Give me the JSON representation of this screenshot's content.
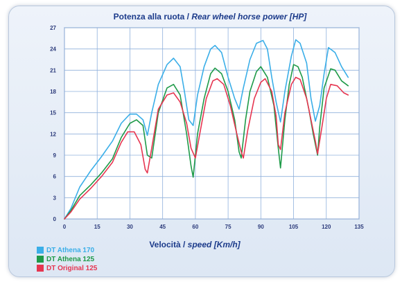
{
  "chart_data": {
    "type": "line",
    "title_main": "Potenza alla ruota / ",
    "title_italic": "Rear wheel horse power [HP]",
    "xlabel_main": "Velocità / ",
    "xlabel_italic": "speed [Km/h]",
    "xlim": [
      0,
      135
    ],
    "ylim": [
      0,
      27
    ],
    "xticks": [
      0,
      15,
      30,
      45,
      60,
      75,
      90,
      105,
      120,
      135
    ],
    "yticks": [
      0,
      3,
      6,
      9,
      12,
      15,
      18,
      21,
      24,
      27
    ],
    "grid": true,
    "legend_position": "bottom-left",
    "series": [
      {
        "name": "DT Athena 170",
        "color": "#3aaee8",
        "points": [
          [
            0,
            0
          ],
          [
            3,
            1.5
          ],
          [
            7,
            4.5
          ],
          [
            12,
            6.8
          ],
          [
            17,
            8.8
          ],
          [
            22,
            11
          ],
          [
            26,
            13.5
          ],
          [
            30,
            14.8
          ],
          [
            33,
            14.8
          ],
          [
            36,
            14
          ],
          [
            38,
            11.8
          ],
          [
            40,
            15
          ],
          [
            43,
            19
          ],
          [
            47,
            21.8
          ],
          [
            50,
            22.7
          ],
          [
            53,
            21.5
          ],
          [
            55,
            18
          ],
          [
            57,
            14
          ],
          [
            59,
            13.2
          ],
          [
            61,
            17.5
          ],
          [
            64,
            21.5
          ],
          [
            67,
            24
          ],
          [
            69,
            24.5
          ],
          [
            72,
            23.5
          ],
          [
            75,
            20
          ],
          [
            78,
            17
          ],
          [
            80,
            15.5
          ],
          [
            82,
            18.5
          ],
          [
            85,
            22.5
          ],
          [
            88,
            24.8
          ],
          [
            91,
            25.2
          ],
          [
            93,
            24
          ],
          [
            95,
            20
          ],
          [
            97,
            16.5
          ],
          [
            99,
            13.7
          ],
          [
            101,
            18
          ],
          [
            104,
            23
          ],
          [
            106,
            25.3
          ],
          [
            108,
            24.8
          ],
          [
            111,
            22
          ],
          [
            113,
            17
          ],
          [
            115,
            13.8
          ],
          [
            117,
            16
          ],
          [
            119,
            20.5
          ],
          [
            121,
            24.2
          ],
          [
            124,
            23.5
          ],
          [
            127,
            21.5
          ],
          [
            130,
            20
          ]
        ]
      },
      {
        "name": "DT Athena 125",
        "color": "#1e9a48",
        "points": [
          [
            0,
            0
          ],
          [
            3,
            1.2
          ],
          [
            7,
            3.3
          ],
          [
            12,
            4.8
          ],
          [
            17,
            6.5
          ],
          [
            22,
            8.5
          ],
          [
            26,
            11.5
          ],
          [
            30,
            13.5
          ],
          [
            33,
            14
          ],
          [
            36,
            13.2
          ],
          [
            38,
            9
          ],
          [
            40,
            8.6
          ],
          [
            43,
            15
          ],
          [
            47,
            18.5
          ],
          [
            50,
            19
          ],
          [
            53,
            17.5
          ],
          [
            56,
            12
          ],
          [
            58,
            7.5
          ],
          [
            59,
            5.9
          ],
          [
            61,
            12
          ],
          [
            64,
            17
          ],
          [
            67,
            20.5
          ],
          [
            69,
            21.3
          ],
          [
            72,
            20.5
          ],
          [
            75,
            18
          ],
          [
            78,
            14
          ],
          [
            80,
            9.5
          ],
          [
            81,
            8.6
          ],
          [
            83,
            14
          ],
          [
            85,
            18
          ],
          [
            88,
            20.8
          ],
          [
            90,
            21.5
          ],
          [
            93,
            20
          ],
          [
            96,
            16
          ],
          [
            98,
            10
          ],
          [
            99,
            7.2
          ],
          [
            101,
            14
          ],
          [
            103,
            19
          ],
          [
            105,
            21.8
          ],
          [
            107,
            21.5
          ],
          [
            109,
            20
          ],
          [
            112,
            15.5
          ],
          [
            114,
            12
          ],
          [
            116,
            9
          ],
          [
            117,
            13
          ],
          [
            119,
            18.5
          ],
          [
            122,
            21.2
          ],
          [
            124,
            21
          ],
          [
            127,
            19.5
          ],
          [
            130,
            18.8
          ]
        ]
      },
      {
        "name": "DT Original 125",
        "color": "#e63550",
        "points": [
          [
            0,
            0
          ],
          [
            3,
            1
          ],
          [
            7,
            2.8
          ],
          [
            12,
            4.3
          ],
          [
            17,
            6
          ],
          [
            22,
            8
          ],
          [
            26,
            10.8
          ],
          [
            29,
            12.3
          ],
          [
            32,
            12.3
          ],
          [
            35,
            10.5
          ],
          [
            37,
            7
          ],
          [
            38,
            6.5
          ],
          [
            40,
            10
          ],
          [
            43,
            15.5
          ],
          [
            47,
            17.5
          ],
          [
            50,
            17.8
          ],
          [
            53,
            16.5
          ],
          [
            56,
            13.5
          ],
          [
            58,
            10
          ],
          [
            60,
            8.6
          ],
          [
            62,
            12
          ],
          [
            65,
            17
          ],
          [
            68,
            19.5
          ],
          [
            70,
            19.8
          ],
          [
            73,
            19
          ],
          [
            76,
            16
          ],
          [
            79,
            12
          ],
          [
            81,
            9.5
          ],
          [
            82,
            8.6
          ],
          [
            84,
            12.5
          ],
          [
            87,
            17
          ],
          [
            90,
            19.3
          ],
          [
            92,
            19.8
          ],
          [
            95,
            18
          ],
          [
            97,
            14.5
          ],
          [
            98,
            10.5
          ],
          [
            99,
            9.8
          ],
          [
            101,
            15
          ],
          [
            104,
            19
          ],
          [
            106,
            20
          ],
          [
            108,
            19.7
          ],
          [
            111,
            17
          ],
          [
            113,
            14
          ],
          [
            115,
            11
          ],
          [
            116,
            9.2
          ],
          [
            118,
            13
          ],
          [
            120,
            17
          ],
          [
            122,
            19
          ],
          [
            125,
            18.8
          ],
          [
            128,
            17.8
          ],
          [
            130,
            17.5
          ]
        ]
      }
    ]
  }
}
